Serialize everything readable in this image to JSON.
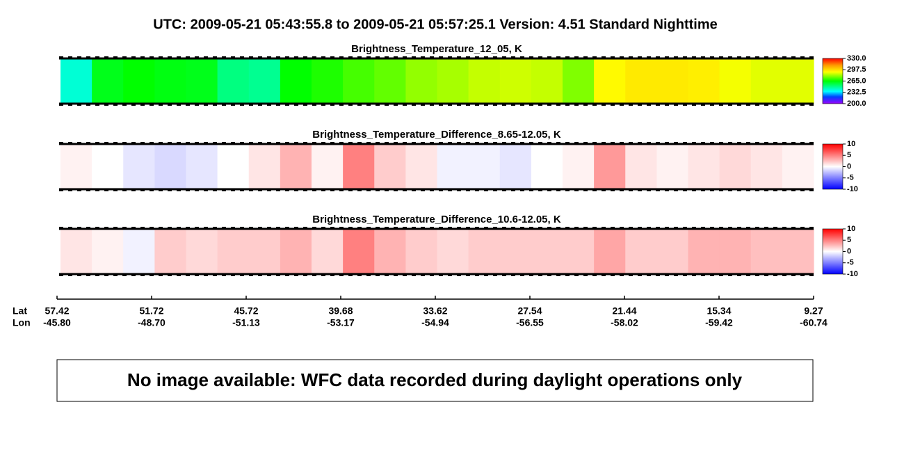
{
  "title": "UTC:  2009-05-21   05:43:55.8  to  2009-05-21   05:57:25.1    Version: 4.51  Standard Nighttime",
  "chart_data": [
    {
      "type": "heatmap",
      "title": "Brightness_Temperature_12_05, K",
      "colormap": "rainbow",
      "values": [
        240,
        262,
        265,
        263,
        262,
        250,
        248,
        265,
        268,
        272,
        275,
        280,
        282,
        285,
        286,
        285,
        278,
        292,
        295,
        295,
        294,
        290,
        288,
        288
      ],
      "clim": [
        200,
        330
      ],
      "cticks": [
        {
          "value": 330,
          "label": "330.0"
        },
        297.5,
        {
          "value": 265,
          "label": "265.0"
        },
        232.5,
        {
          "value": 200,
          "label": "200.0"
        }
      ]
    },
    {
      "type": "heatmap",
      "title": "Brightness_Temperature_Difference_8.65-12.05, K",
      "colormap": "diverging",
      "values": [
        0.5,
        0,
        -1,
        -1.5,
        -1,
        0,
        1,
        3,
        0.5,
        5,
        2,
        1,
        -0.5,
        -0.5,
        -1,
        0,
        0.5,
        4,
        1,
        0.5,
        1,
        1.5,
        1,
        0.5
      ],
      "clim": [
        -10,
        10
      ],
      "cticks": [
        10,
        5,
        0,
        -5,
        -10
      ]
    },
    {
      "type": "heatmap",
      "title": "Brightness_Temperature_Difference_10.6-12.05, K",
      "colormap": "diverging",
      "values": [
        1,
        0.5,
        -0.5,
        2,
        1.5,
        2,
        2,
        3,
        1.5,
        5,
        3,
        2,
        1.5,
        2,
        2,
        2,
        2,
        3.5,
        2,
        2,
        3,
        3,
        2.5,
        2.5
      ],
      "clim": [
        -10,
        10
      ],
      "cticks": [
        10,
        5,
        0,
        -5,
        -10
      ]
    }
  ],
  "track": {
    "row_labels": [
      "Lat",
      "Lon"
    ],
    "lat": [
      "57.42",
      "51.72",
      "45.72",
      "39.68",
      "33.62",
      "27.54",
      "21.44",
      "15.34",
      "9.27"
    ],
    "lon": [
      "-45.80",
      "-48.70",
      "-51.13",
      "-53.17",
      "-54.94",
      "-56.55",
      "-58.02",
      "-59.42",
      "-60.74"
    ]
  },
  "note": "No image available: WFC data recorded during daylight operations only"
}
